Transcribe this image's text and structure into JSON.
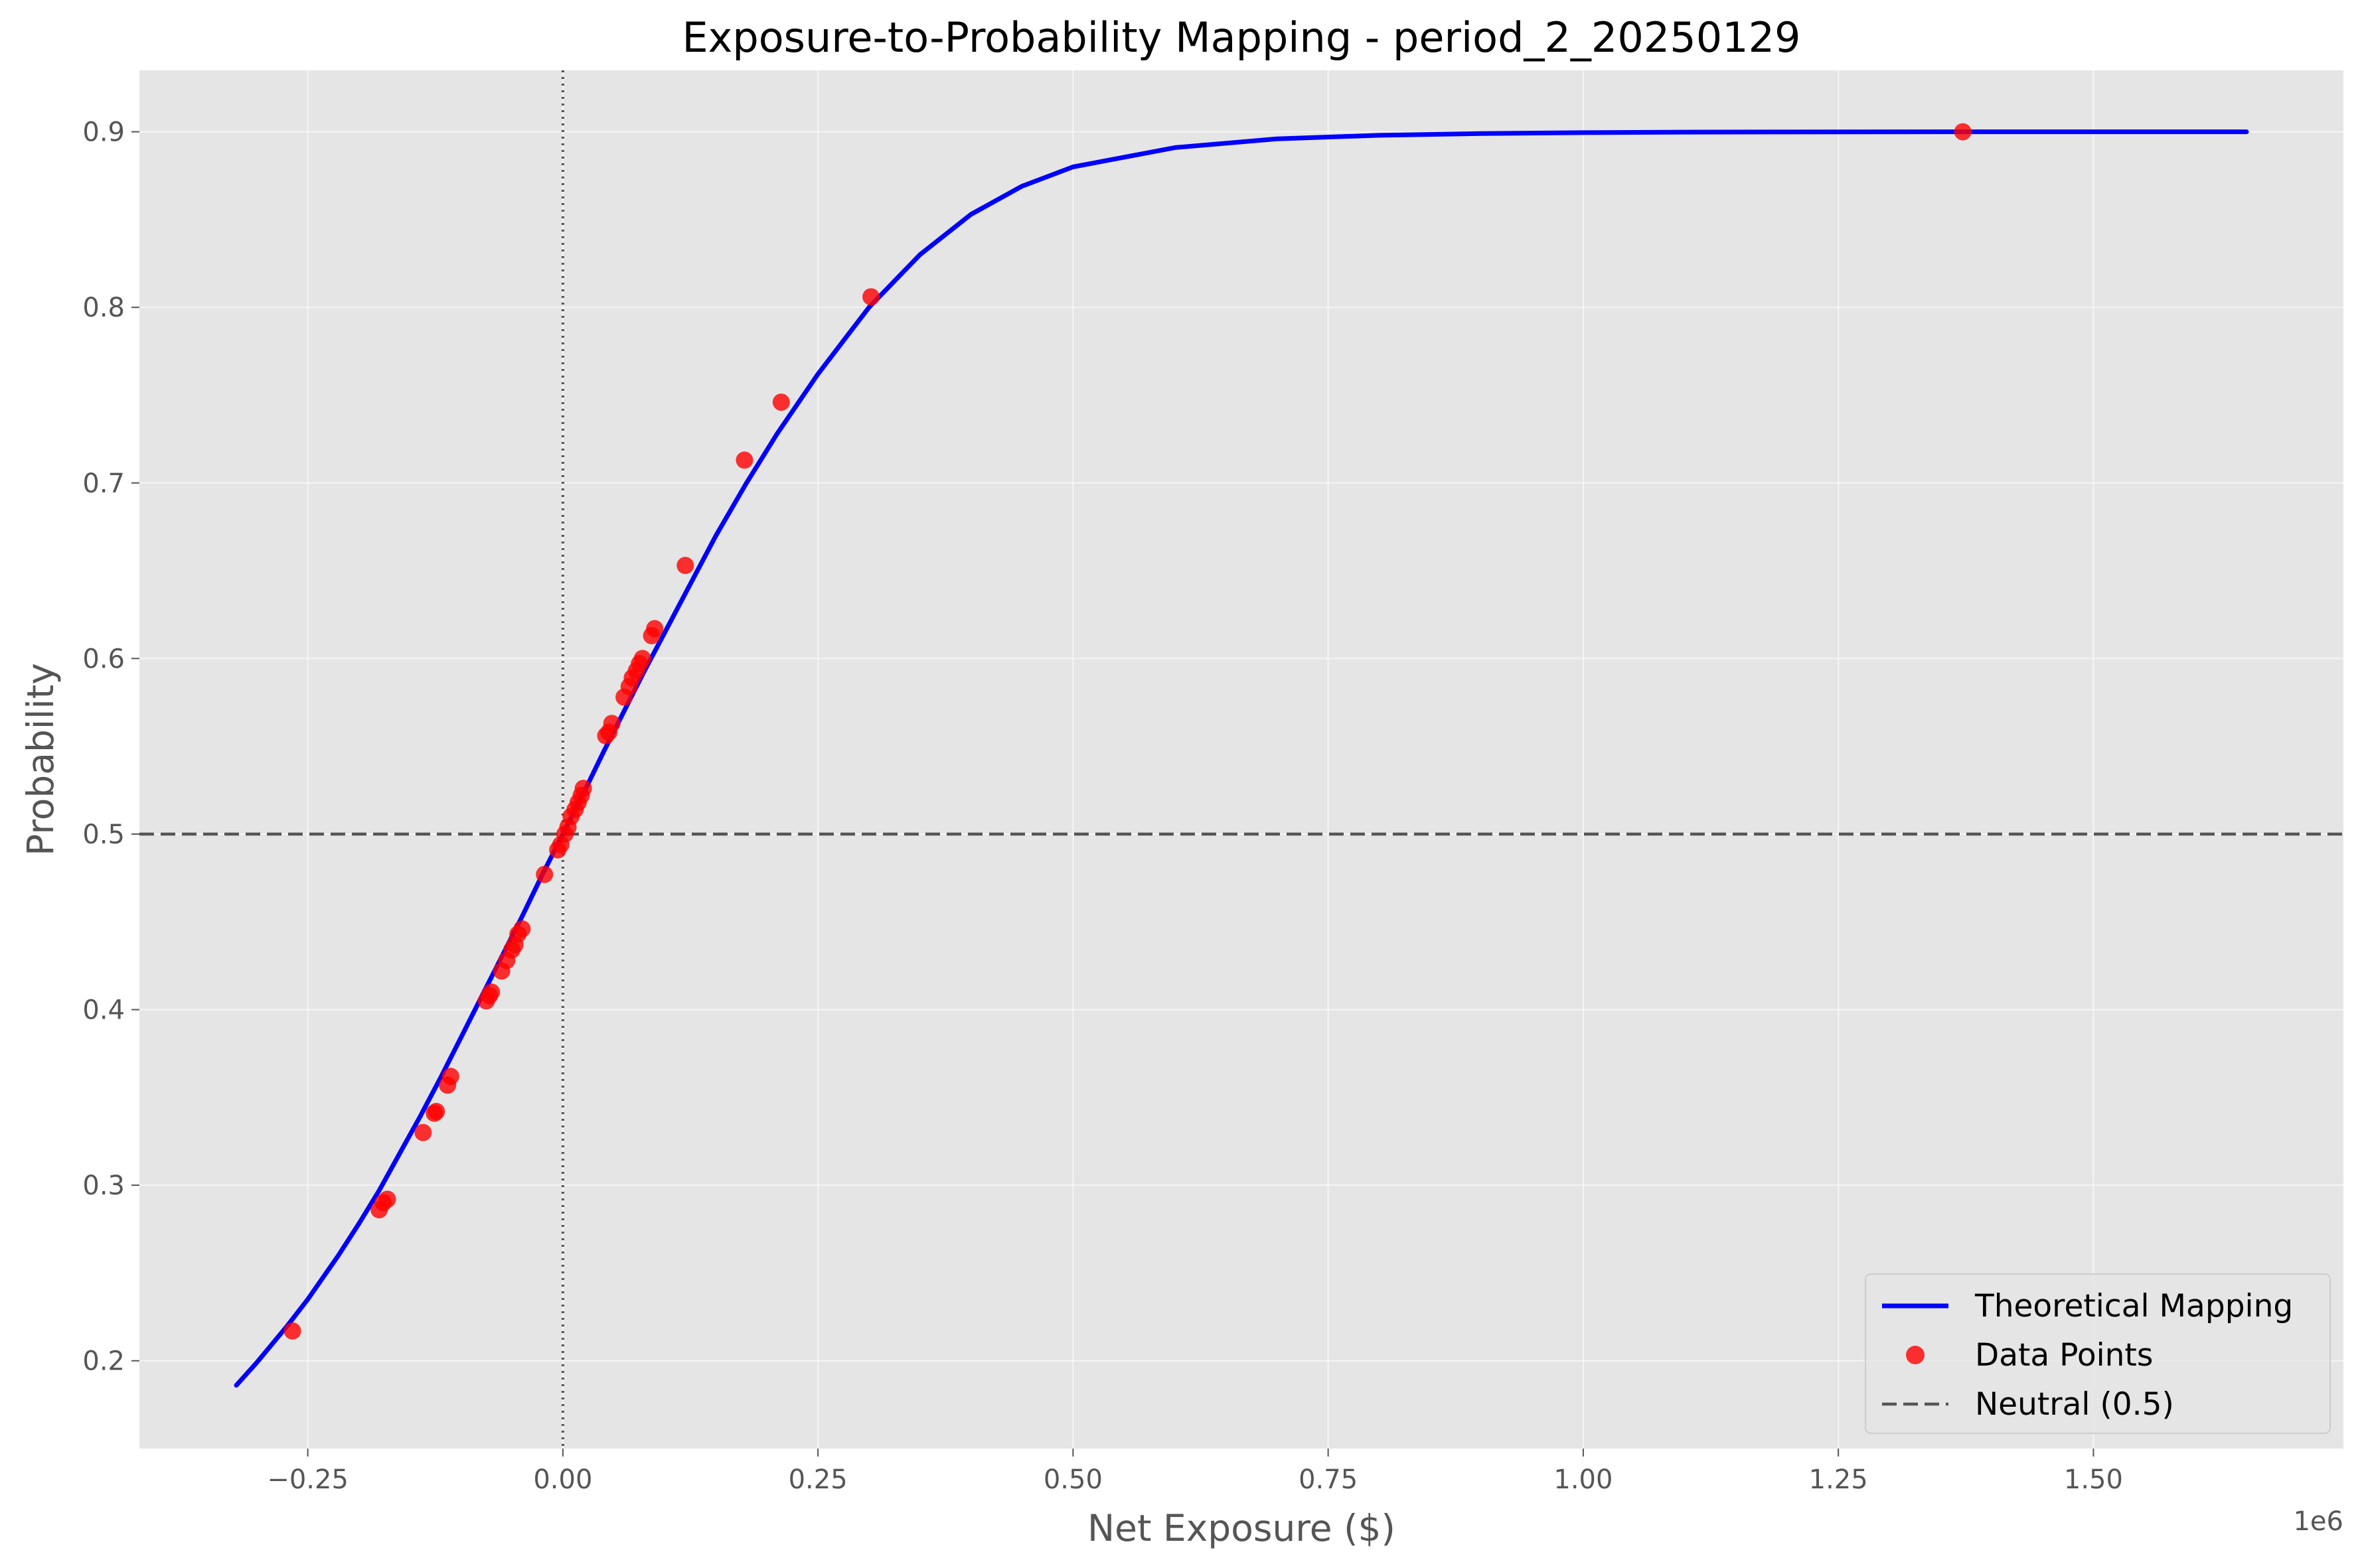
{
  "chart_data": {
    "type": "line",
    "title": "Exposure-to-Probability Mapping - period_2_20250129",
    "xlabel": "Net Exposure ($)",
    "ylabel": "Probability",
    "x_offset_label": "1e6",
    "xlim": [
      -0.415,
      1.745
    ],
    "ylim": [
      0.15,
      0.935
    ],
    "x_ticks": [
      -0.25,
      0.0,
      0.25,
      0.5,
      0.75,
      1.0,
      1.25,
      1.5
    ],
    "x_tick_labels": [
      "−0.25",
      "0.00",
      "0.25",
      "0.50",
      "0.75",
      "1.00",
      "1.25",
      "1.50"
    ],
    "y_ticks": [
      0.2,
      0.3,
      0.4,
      0.5,
      0.6,
      0.7,
      0.8,
      0.9
    ],
    "y_tick_labels": [
      "0.2",
      "0.3",
      "0.4",
      "0.5",
      "0.6",
      "0.7",
      "0.8",
      "0.9"
    ],
    "grid": true,
    "legend_position": "bottom-right",
    "series": [
      {
        "name": "Theoretical Mapping",
        "kind": "line",
        "color": "#0000ff",
        "x": [
          -0.32,
          -0.3,
          -0.27,
          -0.25,
          -0.22,
          -0.2,
          -0.18,
          -0.16,
          -0.14,
          -0.12,
          -0.1,
          -0.08,
          -0.06,
          -0.04,
          -0.02,
          0.0,
          0.02,
          0.04,
          0.06,
          0.08,
          0.1,
          0.12,
          0.15,
          0.18,
          0.21,
          0.25,
          0.3,
          0.35,
          0.4,
          0.45,
          0.5,
          0.6,
          0.7,
          0.8,
          0.9,
          1.0,
          1.1,
          1.2,
          1.37,
          1.5,
          1.65
        ],
        "y": [
          0.186,
          0.199,
          0.22,
          0.235,
          0.26,
          0.278,
          0.297,
          0.318,
          0.339,
          0.361,
          0.384,
          0.407,
          0.43,
          0.453,
          0.477,
          0.5,
          0.523,
          0.547,
          0.57,
          0.593,
          0.615,
          0.637,
          0.67,
          0.7,
          0.728,
          0.762,
          0.8,
          0.83,
          0.853,
          0.869,
          0.88,
          0.891,
          0.896,
          0.898,
          0.899,
          0.8995,
          0.8998,
          0.8999,
          0.9,
          0.9,
          0.9
        ]
      },
      {
        "name": "Data Points",
        "kind": "scatter",
        "color": "#ff0000",
        "x": [
          -0.265,
          -0.18,
          -0.176,
          -0.172,
          -0.137,
          -0.126,
          -0.124,
          -0.113,
          -0.11,
          -0.075,
          -0.072,
          -0.07,
          -0.06,
          -0.055,
          -0.05,
          -0.047,
          -0.044,
          -0.04,
          -0.018,
          -0.005,
          -0.002,
          0.002,
          0.005,
          0.008,
          0.012,
          0.015,
          0.018,
          0.02,
          0.042,
          0.045,
          0.048,
          0.06,
          0.065,
          0.068,
          0.072,
          0.075,
          0.078,
          0.087,
          0.09,
          0.12,
          0.178,
          0.214,
          0.302,
          1.372
        ],
        "y": [
          0.217,
          0.286,
          0.29,
          0.292,
          0.33,
          0.341,
          0.342,
          0.357,
          0.362,
          0.405,
          0.408,
          0.41,
          0.422,
          0.428,
          0.434,
          0.437,
          0.443,
          0.446,
          0.477,
          0.491,
          0.494,
          0.5,
          0.504,
          0.51,
          0.514,
          0.518,
          0.522,
          0.526,
          0.556,
          0.558,
          0.563,
          0.578,
          0.584,
          0.589,
          0.593,
          0.597,
          0.6,
          0.613,
          0.617,
          0.653,
          0.713,
          0.746,
          0.806,
          0.9
        ]
      },
      {
        "name": "Neutral (0.5)",
        "kind": "hline",
        "color": "#555555",
        "value": 0.5
      }
    ],
    "vline": {
      "value": 0.0,
      "color": "#555555",
      "style": "dotted"
    }
  }
}
